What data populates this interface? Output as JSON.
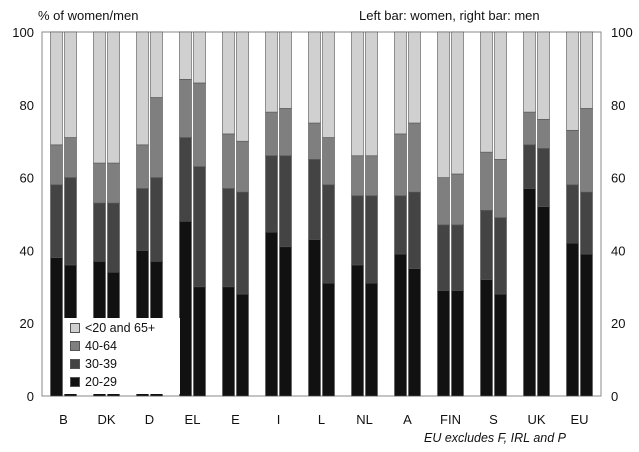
{
  "chart_data": {
    "type": "bar",
    "stacked": true,
    "ylabel": "% of women/men",
    "subtitle": "Left bar: women, right bar: men",
    "footnote": "EU excludes F, IRL and P",
    "ylim": [
      0,
      100
    ],
    "yticks": [
      0,
      20,
      40,
      60,
      80,
      100
    ],
    "grid": false,
    "legend_position": "bottom-left",
    "categories": [
      "B",
      "DK",
      "D",
      "EL",
      "E",
      "I",
      "L",
      "NL",
      "A",
      "FIN",
      "S",
      "UK",
      "EU"
    ],
    "series": [
      {
        "name": "20-29",
        "color": "#111111",
        "women": [
          38,
          37,
          40,
          48,
          30,
          45,
          43,
          36,
          39,
          29,
          32,
          57,
          42
        ],
        "men": [
          36,
          34,
          37,
          30,
          28,
          41,
          31,
          31,
          35,
          29,
          28,
          52,
          39
        ]
      },
      {
        "name": "30-39",
        "color": "#444444",
        "women": [
          20,
          16,
          17,
          23,
          27,
          21,
          22,
          19,
          16,
          18,
          19,
          12,
          16
        ],
        "men": [
          24,
          19,
          23,
          33,
          28,
          25,
          27,
          24,
          21,
          18,
          21,
          16,
          17
        ]
      },
      {
        "name": "40-64",
        "color": "#7f7f7f",
        "women": [
          11,
          11,
          12,
          16,
          15,
          12,
          10,
          11,
          17,
          13,
          16,
          9,
          15
        ],
        "men": [
          11,
          11,
          22,
          23,
          14,
          13,
          13,
          11,
          19,
          14,
          16,
          8,
          23
        ]
      },
      {
        "name": "<20 and 65+",
        "color": "#d0d0d0",
        "women": [
          31,
          36,
          31,
          13,
          28,
          22,
          25,
          34,
          28,
          40,
          33,
          22,
          27
        ],
        "men": [
          29,
          36,
          18,
          14,
          30,
          21,
          29,
          34,
          25,
          39,
          35,
          24,
          21
        ]
      }
    ],
    "legend": [
      "<20 and 65+",
      "40-64",
      "30-39",
      "20-29"
    ]
  }
}
